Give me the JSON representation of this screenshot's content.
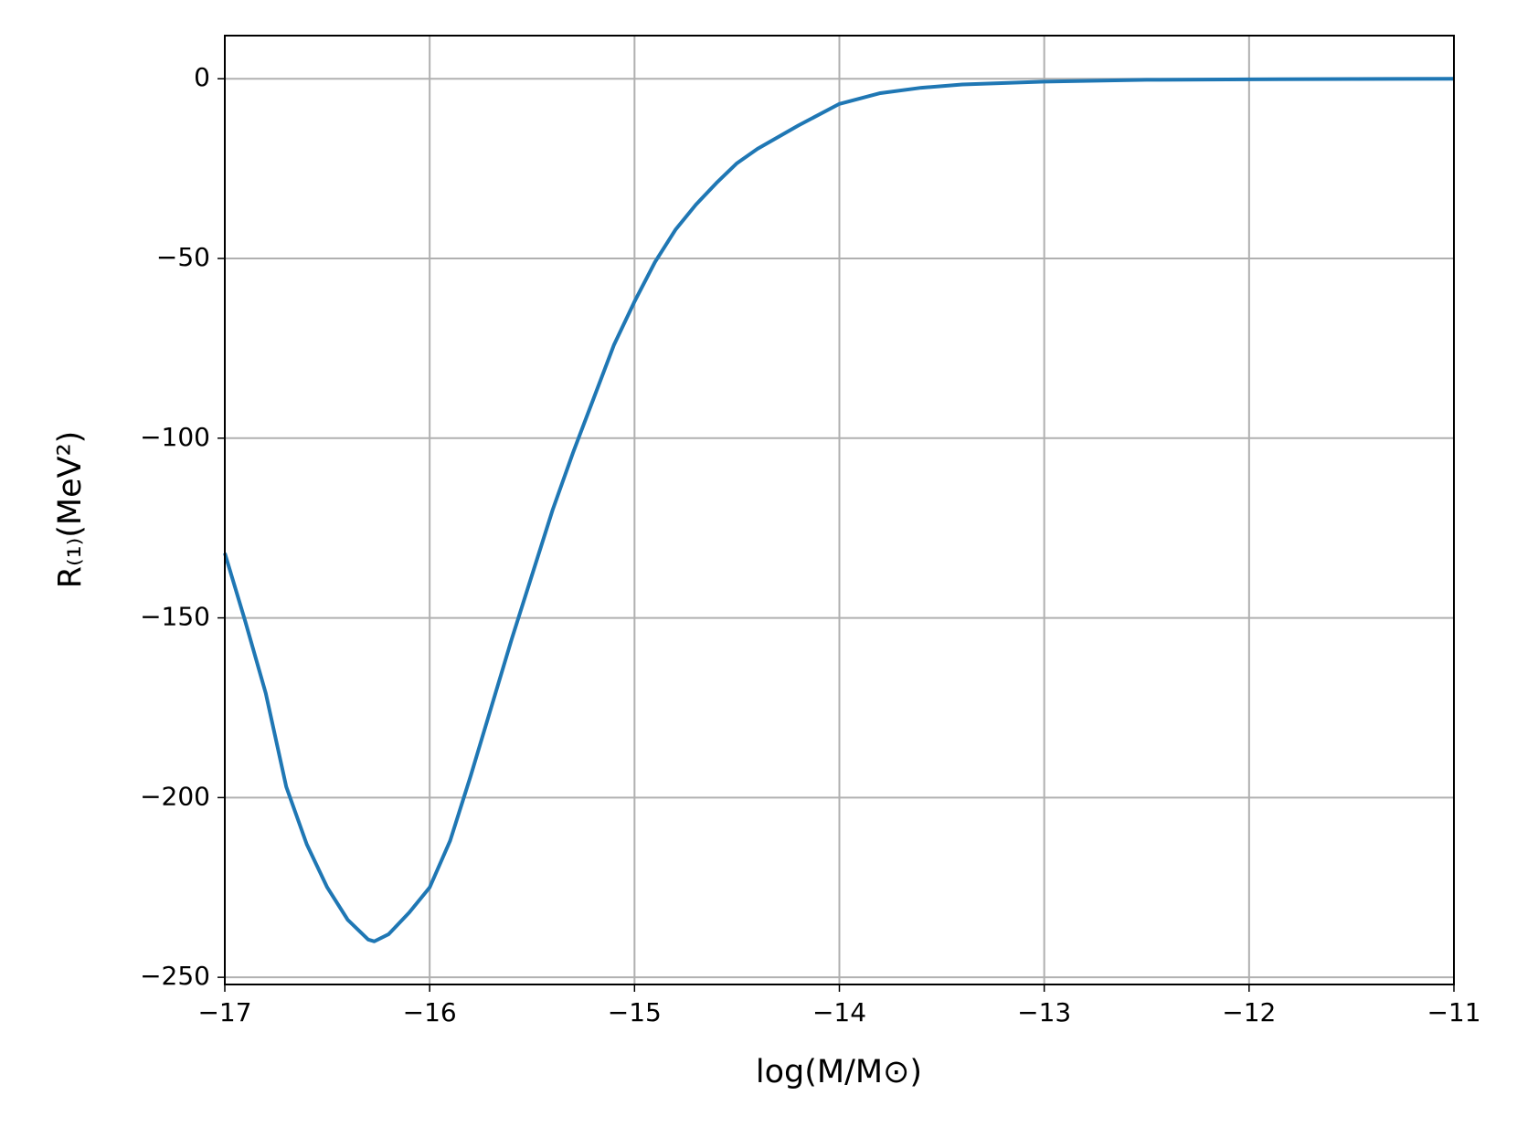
{
  "chart_data": {
    "type": "line",
    "xlabel": "log(M/M⊙)",
    "ylabel": "R₍₁₎(MeV²)",
    "x": [
      -17,
      -16.9,
      -16.8,
      -16.7,
      -16.6,
      -16.5,
      -16.4,
      -16.3,
      -16.27,
      -16.2,
      -16.1,
      -16.0,
      -15.9,
      -15.8,
      -15.7,
      -15.6,
      -15.5,
      -15.4,
      -15.3,
      -15.2,
      -15.1,
      -15.0,
      -14.9,
      -14.8,
      -14.7,
      -14.6,
      -14.5,
      -14.4,
      -14.2,
      -14.0,
      -13.8,
      -13.6,
      -13.4,
      -13.0,
      -12.5,
      -12.0,
      -11.0
    ],
    "series": [
      {
        "color": "#1f77b4",
        "values": [
          -132,
          -151,
          -171,
          -197,
          -213,
          -225,
          -234,
          -239.5,
          -240,
          -238,
          -232,
          -225,
          -212,
          -194,
          -175,
          -156,
          -138,
          -120,
          -104,
          -89,
          -74,
          -62,
          -51,
          -42,
          -35,
          -29,
          -23.5,
          -19.5,
          -13,
          -7,
          -4,
          -2.5,
          -1.6,
          -0.8,
          -0.3,
          -0.15,
          0
        ]
      }
    ],
    "xlim": [
      -17,
      -11
    ],
    "ylim": [
      -252,
      12
    ],
    "xticks": [
      {
        "value": -17,
        "label": "−17"
      },
      {
        "value": -16,
        "label": "−16"
      },
      {
        "value": -15,
        "label": "−15"
      },
      {
        "value": -14,
        "label": "−14"
      },
      {
        "value": -13,
        "label": "−13"
      },
      {
        "value": -12,
        "label": "−12"
      },
      {
        "value": -11,
        "label": "−11"
      }
    ],
    "yticks": [
      0,
      {
        "value": -50,
        "label": "−50"
      },
      {
        "value": -100,
        "label": "−100"
      },
      {
        "value": -150,
        "label": "−150"
      },
      {
        "value": -200,
        "label": "−200"
      },
      {
        "value": -250,
        "label": "−250"
      }
    ],
    "grid": true,
    "grid_color": "#b0b0b0"
  }
}
